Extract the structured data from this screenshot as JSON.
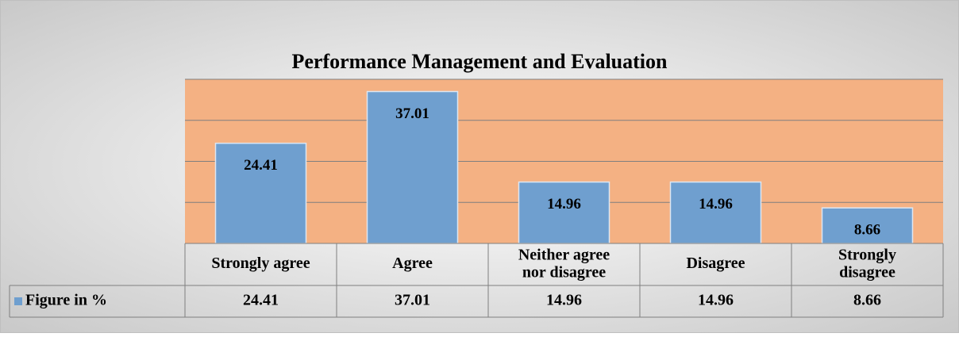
{
  "chart_data": {
    "type": "bar",
    "title": "Performance Management and Evaluation",
    "categories": [
      "Strongly agree",
      "Agree",
      "Neither agree nor disagree",
      "Disagree",
      "Strongly disagree"
    ],
    "series": [
      {
        "name": "Figure in %",
        "color": "#6f9fcf",
        "values": [
          24.41,
          37.01,
          14.96,
          14.96,
          8.66
        ]
      }
    ],
    "ylim": [
      0,
      40
    ],
    "yticks": [
      0,
      10,
      20,
      30,
      40
    ],
    "grid": true,
    "plot_background": "#f4b183",
    "data_table": true
  }
}
